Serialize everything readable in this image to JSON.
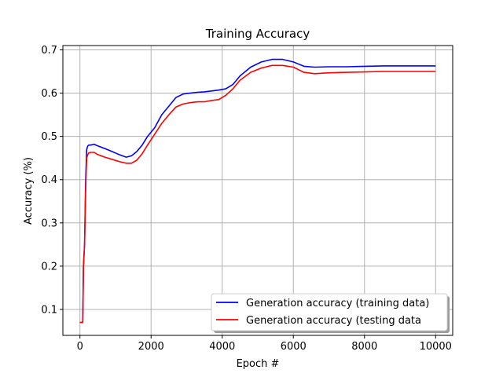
{
  "chart_data": {
    "type": "line",
    "title": "Training Accuracy",
    "xlabel": "Epoch #",
    "ylabel": "Accuracy (%)",
    "xlim": [
      -480,
      10480
    ],
    "ylim": [
      0.04,
      0.71
    ],
    "xticks": [
      0,
      2000,
      4000,
      6000,
      8000,
      10000
    ],
    "xtick_labels": [
      "0",
      "2000",
      "4000",
      "6000",
      "8000",
      "10000"
    ],
    "yticks": [
      0.1,
      0.2,
      0.3,
      0.4,
      0.5,
      0.6,
      0.7
    ],
    "ytick_labels": [
      "0.1",
      "0.2",
      "0.3",
      "0.4",
      "0.5",
      "0.6",
      "0.7"
    ],
    "grid": true,
    "legend_position": "lower-right",
    "series": [
      {
        "name": "Generation accuracy (training data)",
        "color": "#0000ff",
        "x": [
          0,
          50,
          80,
          100,
          130,
          160,
          190,
          220,
          250,
          300,
          400,
          500,
          700,
          900,
          1100,
          1300,
          1450,
          1600,
          1750,
          1900,
          2100,
          2300,
          2500,
          2700,
          2900,
          3100,
          3300,
          3500,
          3700,
          3900,
          4100,
          4300,
          4500,
          4800,
          5100,
          5400,
          5700,
          6000,
          6300,
          6600,
          7000,
          7500,
          8000,
          8500,
          9000,
          9500,
          10000
        ],
        "y": [
          0.07,
          0.07,
          0.07,
          0.2,
          0.25,
          0.4,
          0.47,
          0.478,
          0.48,
          0.48,
          0.482,
          0.478,
          0.472,
          0.465,
          0.458,
          0.452,
          0.455,
          0.465,
          0.48,
          0.5,
          0.52,
          0.55,
          0.57,
          0.59,
          0.598,
          0.6,
          0.602,
          0.603,
          0.605,
          0.607,
          0.61,
          0.62,
          0.64,
          0.66,
          0.672,
          0.678,
          0.678,
          0.672,
          0.662,
          0.66,
          0.661,
          0.661,
          0.662,
          0.663,
          0.663,
          0.663,
          0.663
        ]
      },
      {
        "name": "Generation accuracy (testing data",
        "color": "#ff0000",
        "x": [
          0,
          50,
          80,
          100,
          130,
          160,
          190,
          220,
          250,
          300,
          400,
          500,
          700,
          900,
          1100,
          1300,
          1450,
          1600,
          1750,
          1900,
          2100,
          2300,
          2500,
          2700,
          2900,
          3100,
          3300,
          3500,
          3700,
          3900,
          4100,
          4300,
          4500,
          4800,
          5100,
          5400,
          5700,
          6000,
          6300,
          6600,
          7000,
          7500,
          8000,
          8500,
          9000,
          9500,
          10000
        ],
        "y": [
          0.07,
          0.07,
          0.07,
          0.2,
          0.25,
          0.38,
          0.45,
          0.458,
          0.462,
          0.463,
          0.463,
          0.458,
          0.452,
          0.447,
          0.442,
          0.438,
          0.438,
          0.445,
          0.46,
          0.48,
          0.505,
          0.53,
          0.55,
          0.568,
          0.575,
          0.578,
          0.58,
          0.58,
          0.583,
          0.585,
          0.595,
          0.61,
          0.63,
          0.648,
          0.658,
          0.664,
          0.664,
          0.66,
          0.648,
          0.645,
          0.647,
          0.648,
          0.649,
          0.65,
          0.65,
          0.65,
          0.65
        ]
      }
    ]
  }
}
